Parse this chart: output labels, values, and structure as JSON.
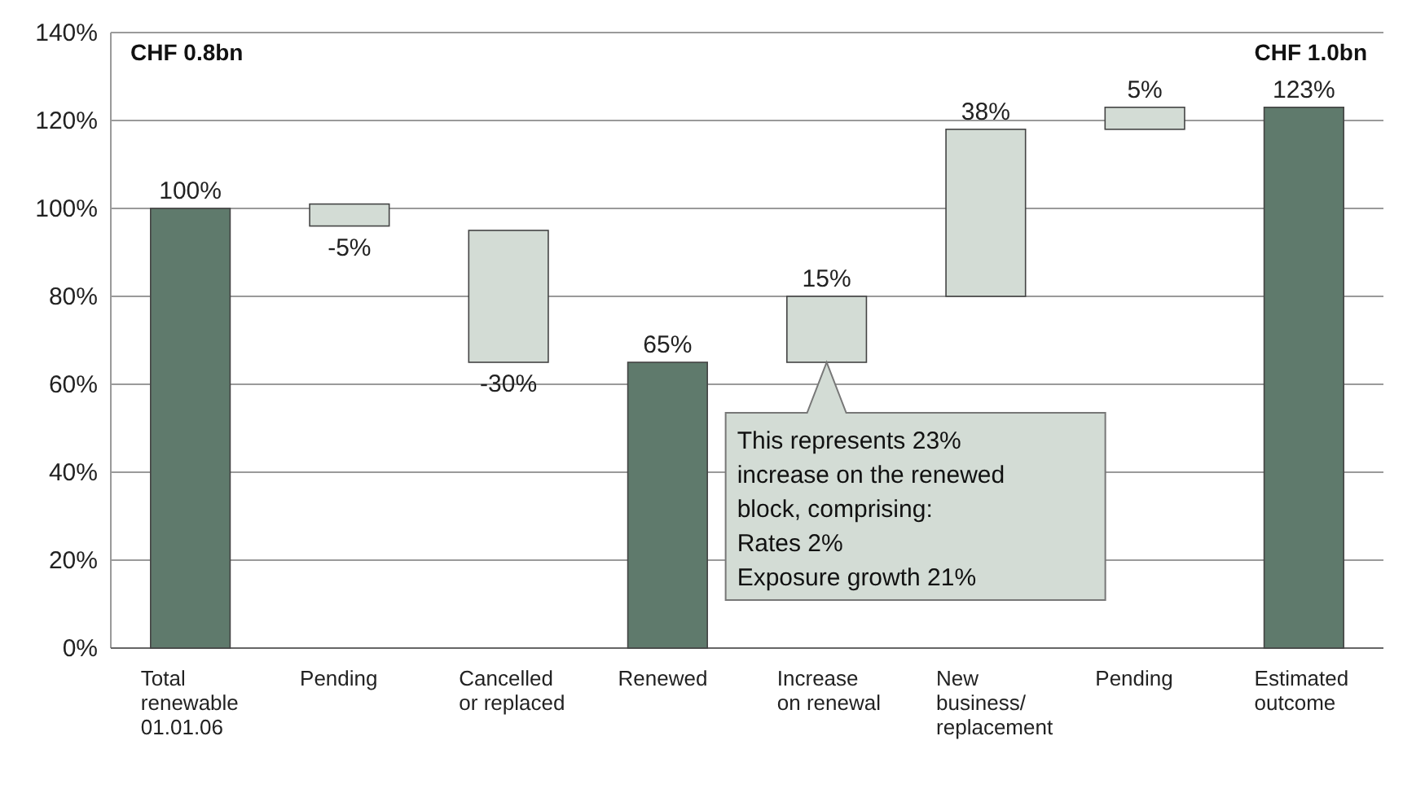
{
  "chart_data": {
    "type": "bar",
    "categories": [
      "Total\nrenewable\n01.01.06",
      "Pending",
      "Cancelled\nor replaced",
      "Renewed",
      "Increase\non renewal",
      "New\nbusiness/\nreplacement",
      "Pending",
      "Estimated\noutcome"
    ],
    "values": [
      100,
      -5,
      -30,
      65,
      15,
      38,
      5,
      123
    ],
    "base": [
      0,
      101,
      95,
      0,
      65,
      80,
      118,
      0
    ],
    "colors": [
      "#5f7a6c",
      "#d3dcd5",
      "#d3dcd5",
      "#5f7a6c",
      "#d3dcd5",
      "#d3dcd5",
      "#d3dcd5",
      "#5f7a6c"
    ],
    "value_labels": [
      "100%",
      "-5%",
      "-30%",
      "65%",
      "15%",
      "38%",
      "5%",
      "123%"
    ],
    "ylim": [
      0,
      140
    ],
    "yticks": [
      {
        "value": 0,
        "label": "0%"
      },
      {
        "value": 20,
        "label": "20%"
      },
      {
        "value": 40,
        "label": "40%"
      },
      {
        "value": 60,
        "label": "60%"
      },
      {
        "value": 80,
        "label": "80%"
      },
      {
        "value": 100,
        "label": "100%"
      },
      {
        "value": 120,
        "label": "120%"
      },
      {
        "value": 140,
        "label": "140%"
      }
    ],
    "grid": "y",
    "annotations": [
      "CHF 0.8bn",
      "CHF 1.0bn",
      {
        "text": "This represents 23%\nincrease on the renewed\nblock, comprising:\nRates 2%\nExposure growth 21%",
        "x": "Increase\non renewal",
        "y": 65
      }
    ]
  }
}
